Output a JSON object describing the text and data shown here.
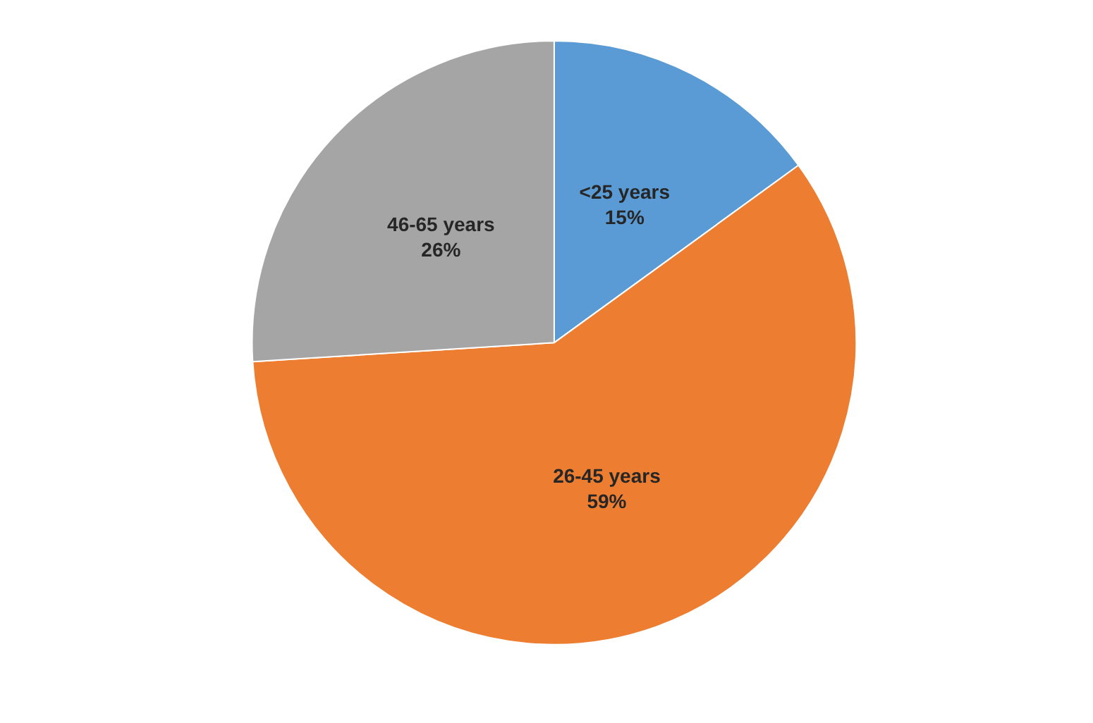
{
  "chart_data": {
    "type": "pie",
    "categories": [
      "<25 years",
      "26-45 years",
      "46-65 years"
    ],
    "values": [
      15,
      59,
      26
    ],
    "colors": [
      "#5b9bd5",
      "#ed7d31",
      "#a5a5a5"
    ],
    "value_labels": [
      "15%",
      "59%",
      "26%"
    ],
    "legend": false
  }
}
